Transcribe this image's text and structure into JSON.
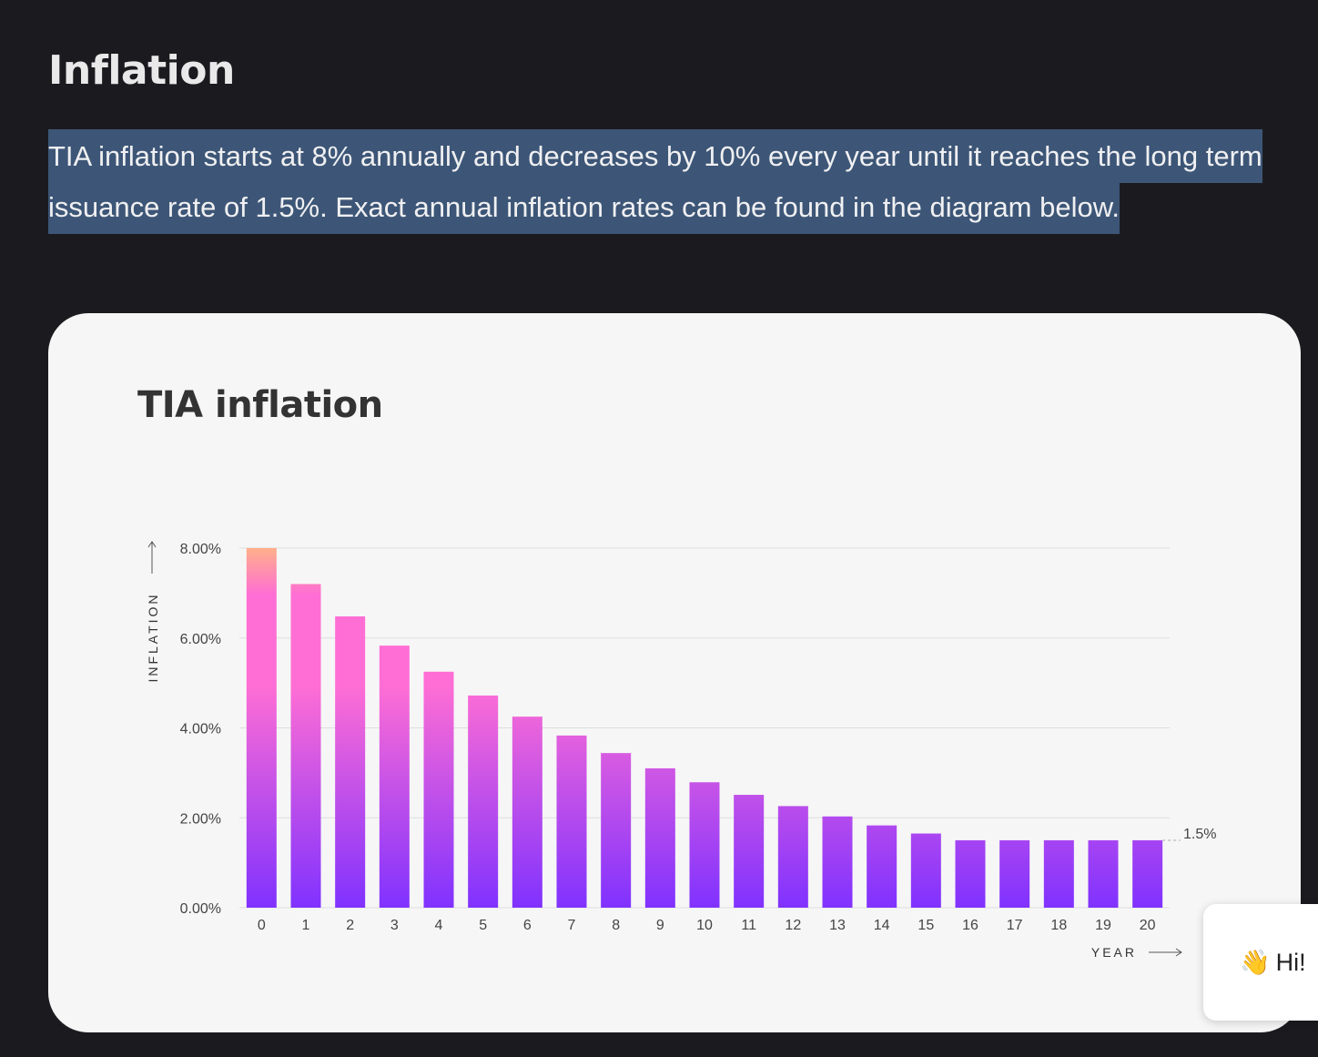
{
  "page": {
    "heading": "Inflation",
    "paragraph": "TIA inflation starts at 8% annually and decreases by 10% every year until it reaches the long term issuance rate of 1.5%. Exact annual inflation rates can be found in the diagram below."
  },
  "chart_data": {
    "type": "bar",
    "title": "TIA inflation",
    "xlabel": "YEAR",
    "ylabel": "INFLATION",
    "categories": [
      "0",
      "1",
      "2",
      "3",
      "4",
      "5",
      "6",
      "7",
      "8",
      "9",
      "10",
      "11",
      "12",
      "13",
      "14",
      "15",
      "16",
      "17",
      "18",
      "19",
      "20"
    ],
    "values": [
      8.0,
      7.2,
      6.48,
      5.83,
      5.25,
      4.72,
      4.25,
      3.83,
      3.44,
      3.1,
      2.79,
      2.51,
      2.26,
      2.03,
      1.83,
      1.65,
      1.5,
      1.5,
      1.5,
      1.5,
      1.5
    ],
    "ylim": [
      0,
      8
    ],
    "yticks": [
      0,
      2,
      4,
      6,
      8
    ],
    "ytick_labels": [
      "0.00%",
      "2.00%",
      "4.00%",
      "6.00%",
      "8.00%"
    ],
    "annotation": "1.5%",
    "grid": true,
    "colors": {
      "bar_top": "#ff6ed4",
      "bar_peak": "#ffb08a",
      "bar_bottom": "#8032ff",
      "gridline": "#dddddd",
      "axis_text": "#444444"
    }
  },
  "chat_widget": {
    "icon": "waving-hand-icon",
    "emoji": "👋",
    "label": "Hi!"
  }
}
